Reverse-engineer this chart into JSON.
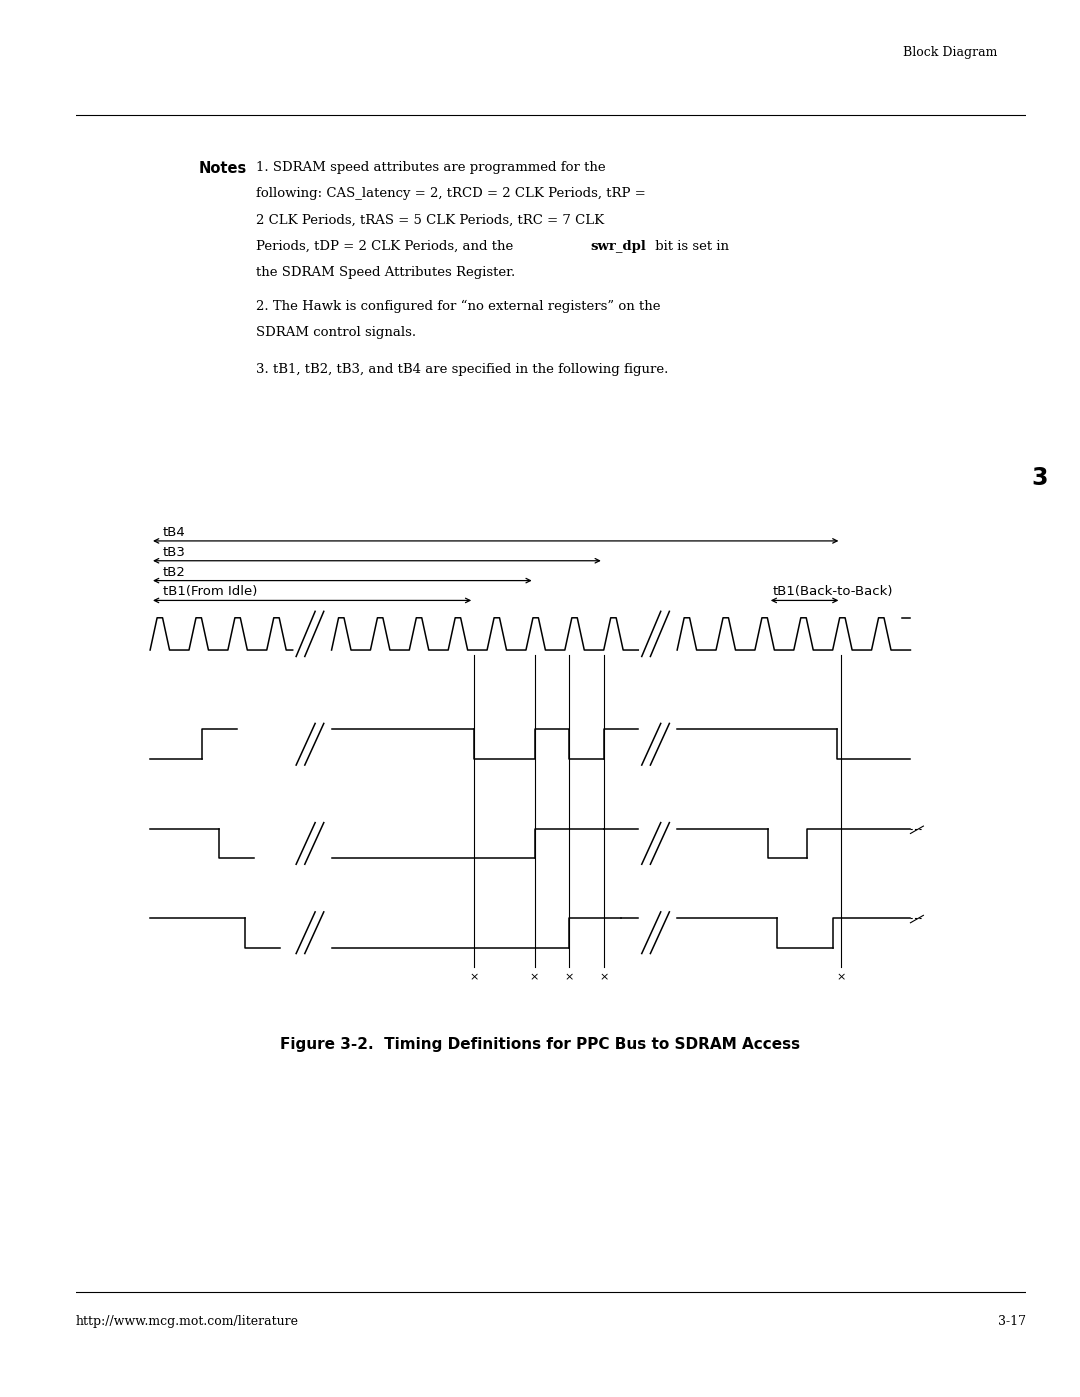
{
  "page_bg": "#ffffff",
  "fig_width": 10.8,
  "fig_height": 13.97,
  "header_text": "Block Diagram",
  "footer_left": "http://www.mcg.mot.com/literature",
  "footer_right": "3-17",
  "tab_number": "3",
  "notes_title": "Notes",
  "figure_caption": "Figure 3-2.  Timing Definitions for PPC Bus to SDRAM Access",
  "diagram": {
    "tB4_label": "tB4",
    "tB3_label": "tB3",
    "tB2_label": "tB2",
    "tB1_idle_label": "tB1(From Idle)",
    "tB1_b2b_label": "tB1(Back-to-Back)"
  }
}
